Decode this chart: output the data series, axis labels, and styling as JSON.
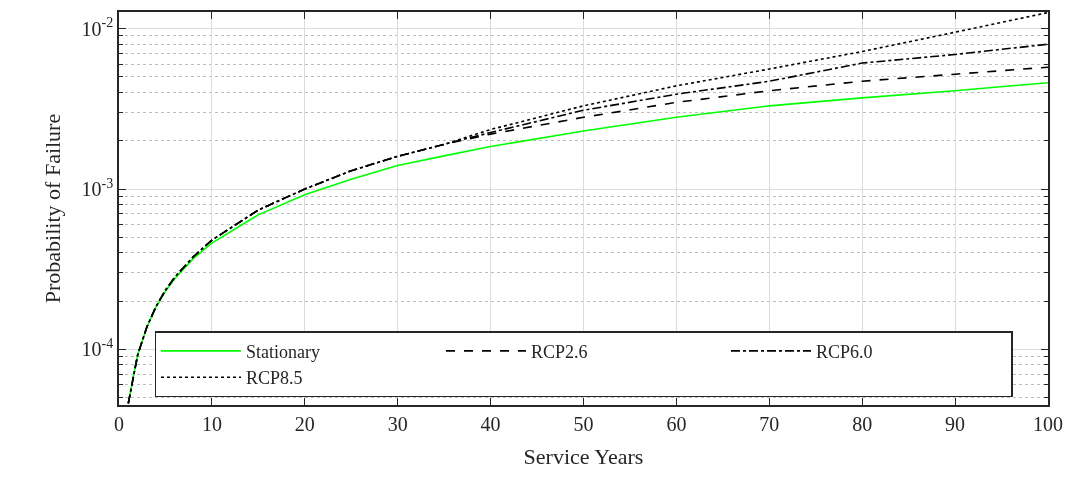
{
  "chart_data": {
    "type": "line",
    "xlabel": "Service Years",
    "ylabel": "Probability of Failure",
    "log": "y",
    "grid": true,
    "legend": "bottom",
    "marker": "none",
    "x": [
      1,
      2,
      3,
      4,
      5,
      6,
      8,
      10,
      15,
      20,
      25,
      30,
      35,
      40,
      50,
      60,
      70,
      80,
      90,
      100
    ],
    "xlim": [
      0,
      100
    ],
    "xticks": [
      0,
      10,
      20,
      30,
      40,
      50,
      60,
      70,
      80,
      90,
      100
    ],
    "ylim": [
      4.5e-05,
      0.0127
    ],
    "yticks": [
      {
        "value": 0.0001,
        "label": "10$^{-4}$"
      },
      {
        "value": 0.001,
        "label": "10$^{-3}$"
      },
      {
        "value": 0.01,
        "label": "10$^{-2}$"
      }
    ],
    "series": [
      {
        "name": "Stationary",
        "color": "#00ff00",
        "line_style": "solid",
        "values": [
          4.6e-05,
          9.2e-05,
          0.000138,
          0.000184,
          0.00023,
          0.000276,
          0.000368,
          0.00046,
          0.00069,
          0.00092,
          0.00115,
          0.0014,
          0.00161,
          0.00184,
          0.0023,
          0.0028,
          0.0033,
          0.0037,
          0.0041,
          0.0046
        ]
      },
      {
        "name": "RCP2.6",
        "color": "#000000",
        "line_style": "dashed",
        "values": [
          4.6e-05,
          9.2e-05,
          0.000138,
          0.000186,
          0.000234,
          0.000282,
          0.000378,
          0.00048,
          0.00074,
          0.001,
          0.0013,
          0.0016,
          0.0019,
          0.0022,
          0.0028,
          0.00347,
          0.0041,
          0.0047,
          0.0052,
          0.00575
        ]
      },
      {
        "name": "RCP6.0",
        "color": "#000000",
        "line_style": "dashdot",
        "values": [
          4.6e-05,
          9.2e-05,
          0.000138,
          0.000186,
          0.000234,
          0.000282,
          0.000378,
          0.00048,
          0.00074,
          0.001,
          0.0013,
          0.0016,
          0.0019,
          0.00225,
          0.0031,
          0.0039,
          0.0047,
          0.0061,
          0.0069,
          0.008
        ]
      },
      {
        "name": "RCP8.5",
        "color": "#000000",
        "line_style": "dotted",
        "values": [
          4.6e-05,
          9.2e-05,
          0.000138,
          0.000186,
          0.000234,
          0.000282,
          0.000378,
          0.00048,
          0.00074,
          0.001,
          0.0013,
          0.0016,
          0.0019,
          0.00235,
          0.0033,
          0.0044,
          0.0056,
          0.0072,
          0.0095,
          0.0126
        ]
      }
    ]
  }
}
